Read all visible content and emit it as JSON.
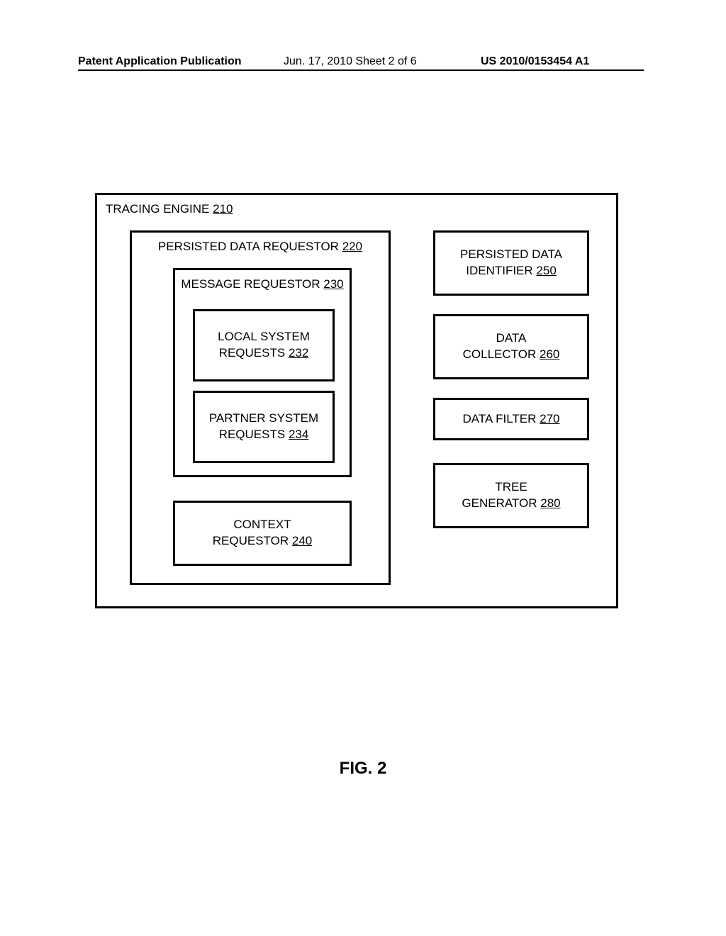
{
  "header": {
    "left": "Patent Application Publication",
    "mid": "Jun. 17, 2010  Sheet 2 of 6",
    "right": "US 2010/0153454 A1"
  },
  "figure": {
    "caption": "FIG. 2",
    "outer": {
      "name": "TRACING ENGINE",
      "ref": "210"
    },
    "left_block": {
      "name": "PERSISTED DATA REQUESTOR",
      "ref": "220"
    },
    "msg_requestor": {
      "name": "MESSAGE REQUESTOR",
      "ref": "230"
    },
    "local_requests": {
      "line1": "LOCAL SYSTEM",
      "line2": "REQUESTS",
      "ref": "232"
    },
    "partner_requests": {
      "line1": "PARTNER SYSTEM",
      "line2": "REQUESTS",
      "ref": "234"
    },
    "context_requestor": {
      "line1": "CONTEXT",
      "line2": "REQUESTOR",
      "ref": "240"
    },
    "persisted_id": {
      "line1": "PERSISTED DATA",
      "line2": "IDENTIFIER",
      "ref": "250"
    },
    "data_collector": {
      "line1": "DATA",
      "line2": "COLLECTOR",
      "ref": "260"
    },
    "data_filter": {
      "name": "DATA FILTER",
      "ref": "270"
    },
    "tree_gen": {
      "line1": "TREE",
      "line2": "GENERATOR",
      "ref": "280"
    }
  }
}
